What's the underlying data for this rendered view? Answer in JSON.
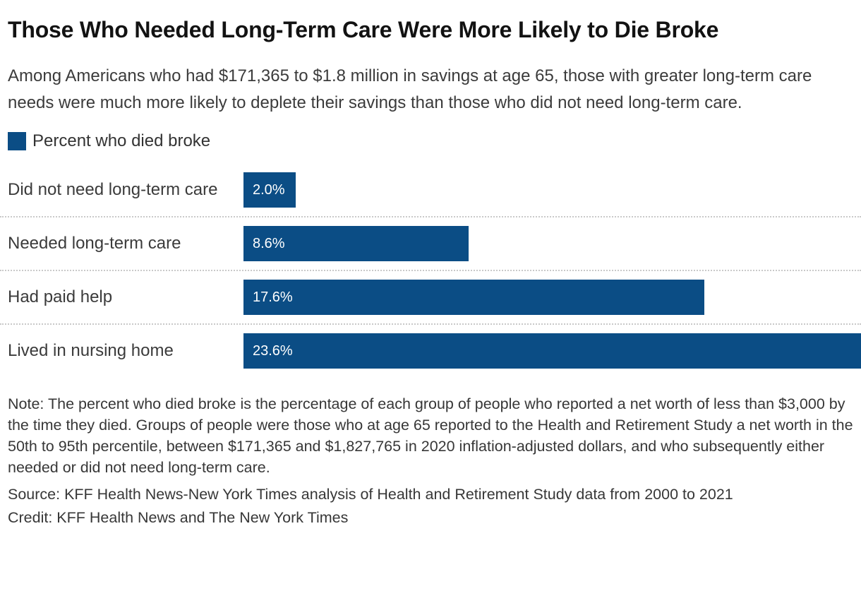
{
  "header": {
    "title": "Those Who Needed Long-Term Care Were More Likely to Die Broke",
    "subtitle": "Among Americans who had $171,365 to $1.8 million in savings at age 65, those with greater long-term care needs were much more likely to deplete their savings than those who did not need long-term care."
  },
  "legend": {
    "label": "Percent who died broke",
    "swatch_color": "#0b4d85"
  },
  "chart_data": {
    "type": "bar",
    "orientation": "horizontal",
    "title": "Those Who Needed Long-Term Care Were More Likely to Die Broke",
    "series_name": "Percent who died broke",
    "categories": [
      "Did not need long-term care",
      "Needed long-term care",
      "Had paid help",
      "Lived in nursing home"
    ],
    "values": [
      2.0,
      8.6,
      17.6,
      23.6
    ],
    "value_labels": [
      "2.0%",
      "8.6%",
      "17.6%",
      "23.6%"
    ],
    "bar_color": "#0b4d85",
    "xlim": [
      0,
      23.6
    ],
    "grid": false,
    "legend_position": "top-left",
    "separator_style": "dotted"
  },
  "footer": {
    "note": "Note: The percent who died broke is the percentage of each group of people who reported a net worth of less than $3,000 by the time they died. Groups of people were those who at age 65 reported to the Health and Retirement Study a net worth in the 50th to 95th percentile, between $171,365 and $1,827,765 in 2020 inflation-adjusted dollars, and who subsequently either needed or did not need long-term care.",
    "source": "Source: KFF Health News-New York Times analysis of Health and Retirement Study data from 2000 to 2021",
    "credit": "Credit: KFF Health News and The New York Times"
  }
}
